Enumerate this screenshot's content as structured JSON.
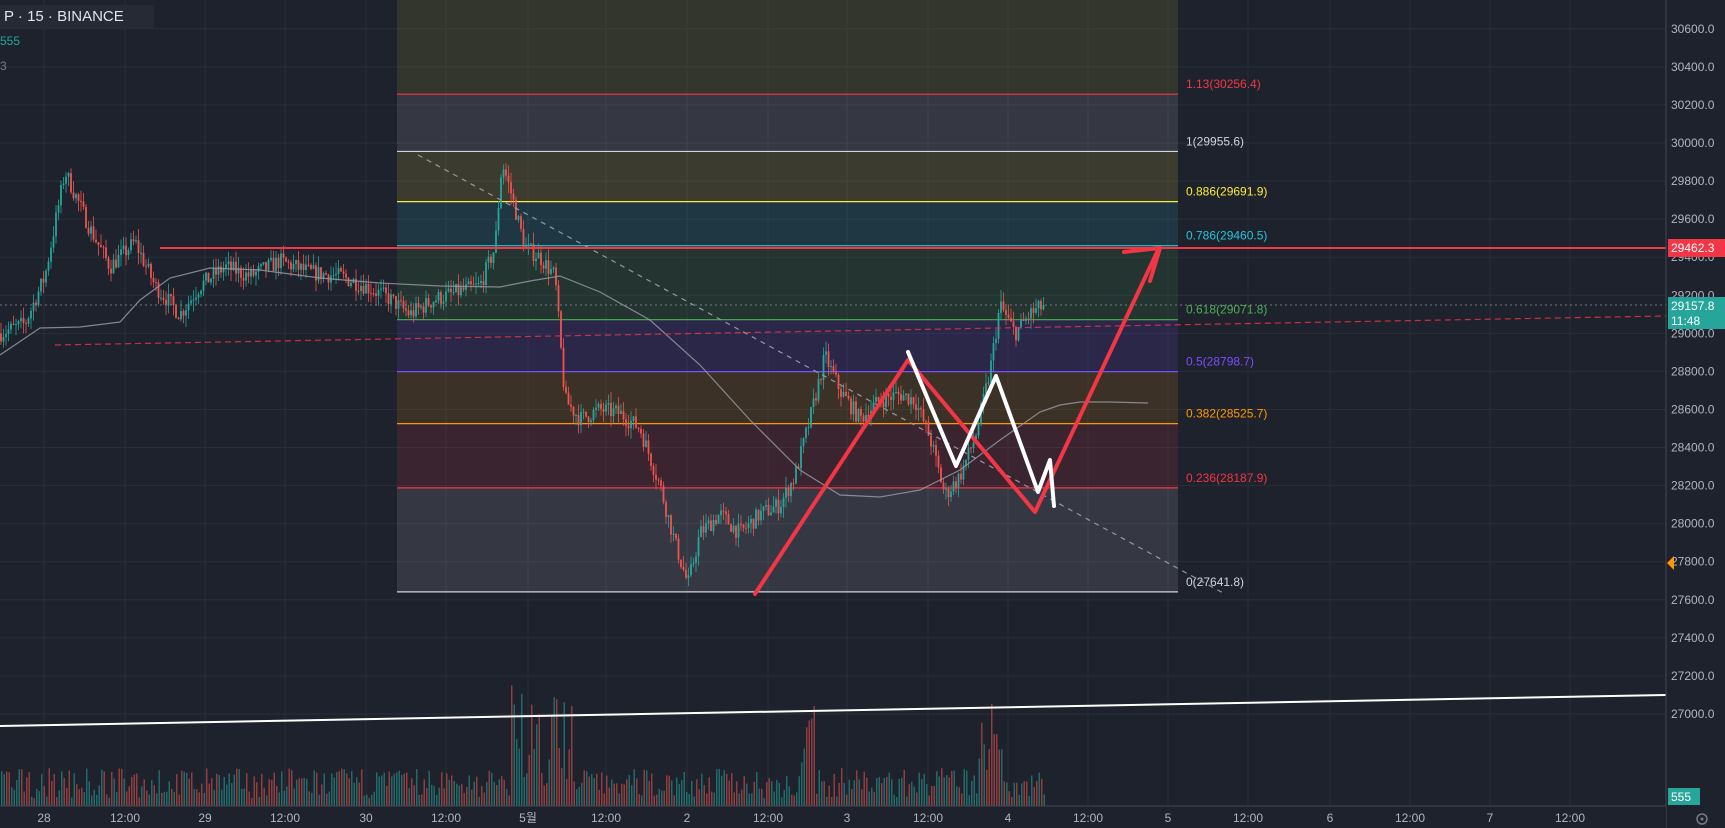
{
  "header": {
    "symbol_line": "P · 15 · BINANCE",
    "indicator_value": "555",
    "indicator_value2": "3"
  },
  "colors": {
    "background": "#1e222d",
    "grid": "#2a2e39",
    "up_candle": "#26a69a",
    "down_candle": "#ef5350",
    "resistance_line": "#f23645",
    "pattern_red": "#f23645",
    "pattern_white": "#ffffff",
    "ma_line": "#9598a1"
  },
  "chart_data": {
    "type": "candlestick",
    "exchange": "BINANCE",
    "interval": "15",
    "y_axis": {
      "min": 26650,
      "max": 30720,
      "ticks": [
        27000.0,
        27200.0,
        27400.0,
        27600.0,
        27800.0,
        28000.0,
        28200.0,
        28400.0,
        28600.0,
        28800.0,
        29000.0,
        29200.0,
        29400.0,
        29600.0,
        29800.0,
        30000.0,
        30200.0,
        30400.0,
        30600.0
      ],
      "tick_labels": [
        "27000.0",
        "27200.0",
        "27400.0",
        "27600.0",
        "27800.0",
        "28000.0",
        "28200.0",
        "28400.0",
        "28600.0",
        "28800.0",
        "29000.0",
        "29200.0",
        "29400.0",
        "29600.0",
        "29800.0",
        "30000.0",
        "30200.0",
        "30400.0",
        "30600.0"
      ],
      "bottom_label": "555"
    },
    "x_axis": {
      "labels": [
        "28",
        "12:00",
        "29",
        "12:00",
        "30",
        "12:00",
        "5월",
        "12:00",
        "2",
        "12:00",
        "3",
        "12:00",
        "4",
        "12:00",
        "5",
        "12:00",
        "6",
        "12:00",
        "7",
        "12:00"
      ]
    },
    "price_labels": {
      "resistance": "29462.3",
      "last_price": "29157.8",
      "countdown": "11:48"
    },
    "fibonacci": {
      "levels": [
        {
          "label": "1.13(30256.4)",
          "price": 30256.4,
          "color": "#f23645"
        },
        {
          "label": "1(29955.6)",
          "price": 29955.6,
          "color": "#d1d4dc"
        },
        {
          "label": "0.886(29691.9)",
          "price": 29691.9,
          "color": "#ffeb3b"
        },
        {
          "label": "0.786(29460.5)",
          "price": 29460.5,
          "color": "#26c6da"
        },
        {
          "label": "0.618(29071.8)",
          "price": 29071.8,
          "color": "#4caf50"
        },
        {
          "label": "0.5(28798.7)",
          "price": 28798.7,
          "color": "#7c4dff"
        },
        {
          "label": "0.382(28525.7)",
          "price": 28525.7,
          "color": "#ff9800"
        },
        {
          "label": "0.236(28187.9)",
          "price": 28187.9,
          "color": "#f23645"
        },
        {
          "label": "0(27641.8)",
          "price": 27641.8,
          "color": "#d1d4dc"
        }
      ]
    },
    "price_path": [
      [
        0,
        29000
      ],
      [
        25,
        29050
      ],
      [
        45,
        29300
      ],
      [
        65,
        29850
      ],
      [
        90,
        29550
      ],
      [
        110,
        29350
      ],
      [
        135,
        29480
      ],
      [
        155,
        29250
      ],
      [
        180,
        29100
      ],
      [
        200,
        29250
      ],
      [
        225,
        29350
      ],
      [
        250,
        29300
      ],
      [
        280,
        29380
      ],
      [
        310,
        29320
      ],
      [
        340,
        29300
      ],
      [
        365,
        29250
      ],
      [
        390,
        29180
      ],
      [
        410,
        29100
      ],
      [
        435,
        29180
      ],
      [
        460,
        29220
      ],
      [
        480,
        29250
      ],
      [
        495,
        29450
      ],
      [
        502,
        29900
      ],
      [
        512,
        29720
      ],
      [
        525,
        29450
      ],
      [
        540,
        29400
      ],
      [
        555,
        29300
      ],
      [
        565,
        28650
      ],
      [
        580,
        28550
      ],
      [
        600,
        28600
      ],
      [
        620,
        28580
      ],
      [
        640,
        28500
      ],
      [
        660,
        28200
      ],
      [
        675,
        27900
      ],
      [
        688,
        27680
      ],
      [
        700,
        27950
      ],
      [
        720,
        28050
      ],
      [
        740,
        27950
      ],
      [
        760,
        28050
      ],
      [
        780,
        28100
      ],
      [
        795,
        28250
      ],
      [
        810,
        28550
      ],
      [
        825,
        28880
      ],
      [
        840,
        28700
      ],
      [
        860,
        28550
      ],
      [
        880,
        28650
      ],
      [
        900,
        28680
      ],
      [
        915,
        28650
      ],
      [
        930,
        28450
      ],
      [
        945,
        28150
      ],
      [
        960,
        28250
      ],
      [
        975,
        28450
      ],
      [
        990,
        28800
      ],
      [
        1000,
        29150
      ],
      [
        1015,
        29000
      ],
      [
        1030,
        29100
      ],
      [
        1045,
        29150
      ]
    ],
    "volume_bars": 420
  }
}
